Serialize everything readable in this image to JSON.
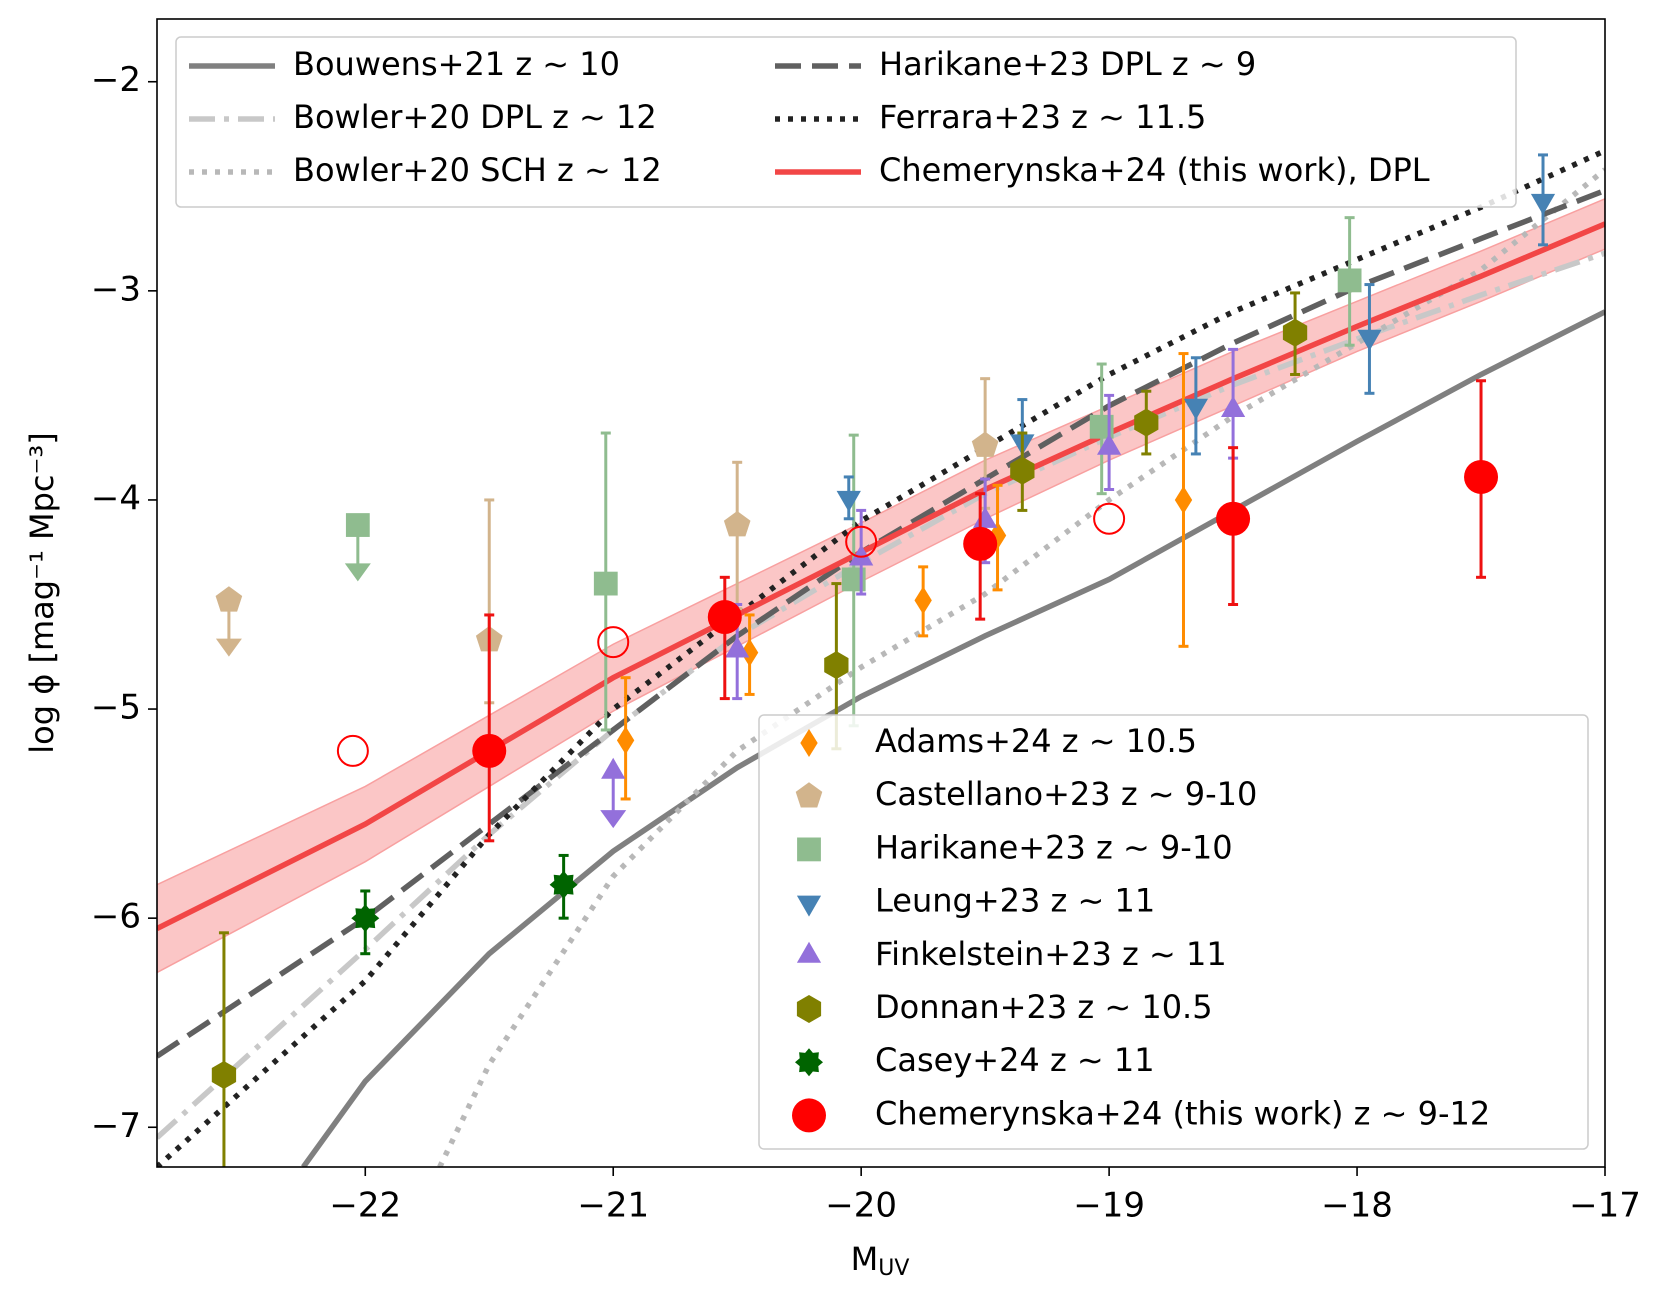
{
  "chart_data": {
    "type": "line",
    "x_label": {
      "main": "M",
      "sub": "UV"
    },
    "y_label": "log ϕ [mag⁻¹ Mpc⁻³]",
    "xlim": [
      -22.84,
      -17
    ],
    "ylim": [
      -7.19,
      -1.7
    ],
    "xticks": [
      {
        "value": -22,
        "label": "−22"
      },
      {
        "value": -21,
        "label": "−21"
      },
      {
        "value": -20,
        "label": "−20"
      },
      {
        "value": -19,
        "label": "−19"
      },
      {
        "value": -18,
        "label": "−18"
      },
      {
        "value": -17,
        "label": "−17"
      }
    ],
    "yticks": [
      {
        "value": -7,
        "label": "−7"
      },
      {
        "value": -6,
        "label": "−6"
      },
      {
        "value": -5,
        "label": "−5"
      },
      {
        "value": -4,
        "label": "−4"
      },
      {
        "value": -3,
        "label": "−3"
      },
      {
        "value": -2,
        "label": "−2"
      }
    ],
    "model_legend": "upper left",
    "data_legend": "lower right",
    "models": [
      {
        "name": "Bouwens+21 z ∼ 10",
        "color": "#808080",
        "style": "solid",
        "x": [
          -22.25,
          -22,
          -21.5,
          -21,
          -20.5,
          -20,
          -19.5,
          -19,
          -18.5,
          -18,
          -17.5,
          -17
        ],
        "values": [
          -7.19,
          -6.78,
          -6.17,
          -5.68,
          -5.28,
          -4.94,
          -4.65,
          -4.38,
          -4.05,
          -3.72,
          -3.4,
          -3.1
        ]
      },
      {
        "name": "Bowler+20 DPL z ∼ 12",
        "color": "#c8c8c8",
        "style": "dashdot",
        "x": [
          -22.84,
          -22,
          -21.5,
          -21,
          -20.5,
          -20,
          -19.5,
          -19,
          -18.5,
          -18,
          -17.5,
          -17
        ],
        "values": [
          -7.05,
          -6.15,
          -5.6,
          -5.1,
          -4.65,
          -4.3,
          -3.97,
          -3.7,
          -3.45,
          -3.23,
          -3.02,
          -2.82
        ]
      },
      {
        "name": "Bowler+20 SCH z ∼ 12",
        "color": "#b8b8b8",
        "style": "dotted",
        "x": [
          -21.7,
          -21.5,
          -21,
          -20.5,
          -20,
          -19.5,
          -19,
          -18.5,
          -18,
          -17.5,
          -17
        ],
        "values": [
          -7.19,
          -6.7,
          -5.8,
          -5.2,
          -4.8,
          -4.45,
          -4.0,
          -3.6,
          -3.25,
          -2.9,
          -2.42
        ]
      },
      {
        "name": "Harikane+23 DPL z ∼ 9",
        "color": "#606060",
        "style": "dashed",
        "x": [
          -22.84,
          -22,
          -21.5,
          -21,
          -20.5,
          -20,
          -19.5,
          -19,
          -18.5,
          -18,
          -17.5,
          -17
        ],
        "values": [
          -6.66,
          -6.0,
          -5.55,
          -5.1,
          -4.65,
          -4.25,
          -3.9,
          -3.55,
          -3.25,
          -2.98,
          -2.75,
          -2.52
        ]
      },
      {
        "name": "Ferrara+23 z ∼ 11.5",
        "color": "#222222",
        "style": "dotted",
        "x": [
          -22.84,
          -22,
          -21.5,
          -21,
          -20.5,
          -20,
          -19.5,
          -19,
          -18.5,
          -18,
          -17.5,
          -17
        ],
        "values": [
          -7.19,
          -6.3,
          -5.6,
          -5.0,
          -4.55,
          -4.1,
          -3.75,
          -3.4,
          -3.1,
          -2.85,
          -2.6,
          -2.33
        ]
      },
      {
        "name": "Chemerynska+24 (this work), DPL",
        "color": "#f24646",
        "style": "solid",
        "band_color": "#f8a0a0",
        "x": [
          -22.84,
          -22,
          -21.5,
          -21,
          -20.5,
          -20,
          -19.5,
          -19,
          -18.5,
          -18,
          -17.5,
          -17
        ],
        "values": [
          -6.05,
          -5.55,
          -5.2,
          -4.85,
          -4.55,
          -4.25,
          -3.95,
          -3.68,
          -3.42,
          -3.17,
          -2.93,
          -2.68
        ],
        "band_upper": [
          -5.84,
          -5.37,
          -5.03,
          -4.69,
          -4.4,
          -4.11,
          -3.81,
          -3.55,
          -3.29,
          -3.05,
          -2.81,
          -2.56
        ],
        "band_lower": [
          -6.26,
          -5.73,
          -5.37,
          -5.01,
          -4.7,
          -4.39,
          -4.09,
          -3.81,
          -3.55,
          -3.29,
          -3.05,
          -2.8
        ]
      }
    ],
    "datasets": [
      {
        "name": "Adams+24 z ∼ 10.5",
        "color": "#ff8c00",
        "err_color": "#ff8c00",
        "marker": "diamond",
        "x": [
          -20.95,
          -20.45,
          -19.75,
          -19.45,
          -18.7
        ],
        "values": [
          -5.15,
          -4.73,
          -4.48,
          -4.17,
          -4.0
        ],
        "err_minus": [
          0.28,
          0.2,
          0.17,
          0.26,
          0.7
        ],
        "err_plus": [
          0.3,
          0.18,
          0.16,
          0.24,
          0.7
        ],
        "upper_limit": [
          false,
          false,
          false,
          false,
          false
        ]
      },
      {
        "name": "Castellano+23 z ∼ 9-10",
        "color": "#d2b48c",
        "err_color": "#d2b48c",
        "marker": "pentagon",
        "x": [
          -22.55,
          -21.5,
          -20.5,
          -19.5
        ],
        "values": [
          -4.48,
          -4.67,
          -4.12,
          -3.74
        ],
        "err_minus": [
          0,
          0.3,
          0.4,
          0.3
        ],
        "err_plus": [
          0,
          0.67,
          0.3,
          0.32
        ],
        "upper_limit": [
          true,
          false,
          false,
          false
        ]
      },
      {
        "name": "Harikane+23 z ∼ 9-10",
        "color": "#8fbc8f",
        "err_color": "#8fbc8f",
        "marker": "square",
        "x": [
          -22.03,
          -21.03,
          -20.03,
          -19.03,
          -18.03
        ],
        "values": [
          -4.12,
          -4.4,
          -4.38,
          -3.65,
          -2.95
        ],
        "err_minus": [
          0,
          0.7,
          0.7,
          0.32,
          0.31
        ],
        "err_plus": [
          0,
          0.72,
          0.69,
          0.3,
          0.3
        ],
        "upper_limit": [
          true,
          false,
          false,
          false,
          false
        ]
      },
      {
        "name": "Leung+23 z ∼ 11",
        "color": "#4682b4",
        "err_color": "#4682b4",
        "marker": "tri-down",
        "x": [
          -20.05,
          -19.35,
          -18.65,
          -17.95,
          -17.25
        ],
        "values": [
          -3.99,
          -3.72,
          -3.55,
          -3.22,
          -2.57
        ],
        "err_minus": [
          0.1,
          0.18,
          0.23,
          0.27,
          0.21
        ],
        "err_plus": [
          0.1,
          0.2,
          0.23,
          0.25,
          0.22
        ],
        "upper_limit": [
          false,
          false,
          false,
          false,
          false
        ]
      },
      {
        "name": "Finkelstein+23 z ∼ 11",
        "color": "#9370db",
        "err_color": "#9370db",
        "marker": "tri-up",
        "x": [
          -21.0,
          -20.5,
          -20.0,
          -19.5,
          -19.0,
          -18.5
        ],
        "values": [
          -5.3,
          -4.72,
          -4.28,
          -4.1,
          -3.75,
          -3.57
        ],
        "err_minus": [
          0,
          0.23,
          0.17,
          0.2,
          0.2,
          0.23
        ],
        "err_plus": [
          0,
          0.22,
          0.23,
          0.2,
          0.25,
          0.29
        ],
        "upper_limit": [
          true,
          false,
          false,
          false,
          false,
          false
        ]
      },
      {
        "name": "Donnan+23 z ∼ 10.5",
        "color": "#808000",
        "err_color": "#808000",
        "marker": "hexagon",
        "x": [
          -22.57,
          -20.1,
          -19.35,
          -18.85,
          -18.25
        ],
        "values": [
          -6.75,
          -4.79,
          -3.86,
          -3.63,
          -3.2
        ],
        "err_minus": [
          0.7,
          0.4,
          0.19,
          0.15,
          0.2
        ],
        "err_plus": [
          0.68,
          0.39,
          0.18,
          0.15,
          0.19
        ],
        "upper_limit": [
          false,
          false,
          false,
          false,
          false
        ]
      },
      {
        "name": "Casey+24 z ∼ 11",
        "color": "#006400",
        "err_color": "#006400",
        "marker": "flower",
        "x": [
          -22.0,
          -21.2
        ],
        "values": [
          -6.0,
          -5.84
        ],
        "err_minus": [
          0.17,
          0.16
        ],
        "err_plus": [
          0.13,
          0.14
        ],
        "upper_limit": [
          false,
          false
        ]
      },
      {
        "name": "Chemerynska+24 (this work) z ∼ 9-12",
        "color": "#ff0000",
        "err_color": "#ee1111",
        "marker": "circle",
        "x": [
          -21.5,
          -20.55,
          -19.52,
          -18.5,
          -17.5
        ],
        "values": [
          -5.2,
          -4.56,
          -4.21,
          -4.09,
          -3.89
        ],
        "err_minus": [
          0.43,
          0.39,
          0.36,
          0.41,
          0.48
        ],
        "err_plus": [
          0.65,
          0.19,
          0.24,
          0.34,
          0.46
        ],
        "upper_limit": [
          false,
          false,
          false,
          false,
          false
        ],
        "open_x": [
          -22.05,
          -21.0,
          -20.0,
          -19.0
        ],
        "open_values": [
          -5.2,
          -4.68,
          -4.2,
          -4.09
        ]
      }
    ]
  }
}
